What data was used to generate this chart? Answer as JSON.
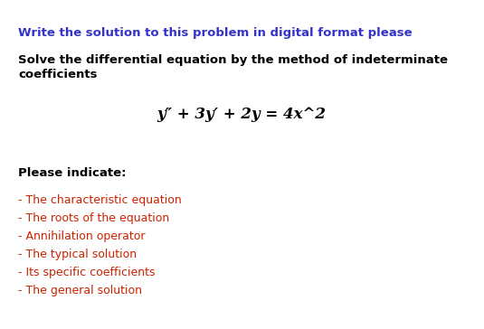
{
  "background_color": "#ffffff",
  "title_text": "Write the solution to this problem in digital format please",
  "title_color": "#3333cc",
  "title_fontsize": 9.5,
  "subtitle_text": "Solve the differential equation by the method of indeterminate\ncoefficients",
  "subtitle_color": "#000000",
  "subtitle_fontsize": 9.5,
  "equation_text": "y″ + 3y′ + 2y = 4x^2",
  "equation_color": "#000000",
  "equation_fontsize": 12,
  "section_header": "Please indicate:",
  "section_header_color": "#000000",
  "section_header_fontsize": 9.5,
  "bullet_items": [
    "- The characteristic equation",
    "- The roots of the equation",
    "- Annihilation operator",
    "- The typical solution",
    "- Its specific coefficients",
    "- The general solution"
  ],
  "bullet_color": "#cc2200",
  "bullet_fontsize": 9.0,
  "fig_width": 5.35,
  "fig_height": 3.64,
  "dpi": 100
}
